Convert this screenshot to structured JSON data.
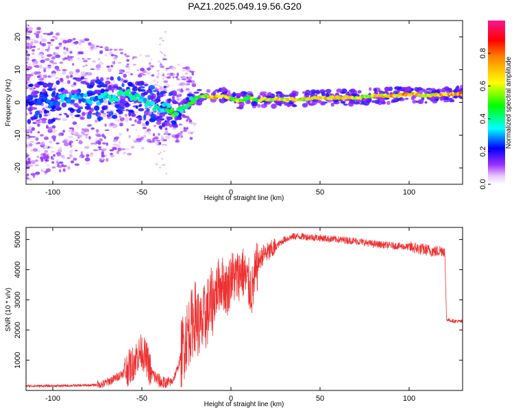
{
  "title": "PAZ1.2025.049.19.56.G20",
  "chart_data": [
    {
      "type": "heatmap",
      "xlabel": "Height of straight line (km)",
      "ylabel": "Frequency (Hz)",
      "xlim": [
        -115,
        130
      ],
      "ylim": [
        -25,
        25
      ],
      "xticks": [
        -100,
        -50,
        0,
        50,
        100
      ],
      "xtick_labels": [
        "-100",
        "-50",
        "0",
        "50",
        "100"
      ],
      "yticks": [
        -20,
        -10,
        0,
        10,
        20
      ],
      "ytick_labels": [
        "-20",
        "-10",
        "0",
        "10",
        "20"
      ],
      "grid": false,
      "colorbar": {
        "label": "Normalized spectral amplitude",
        "range": [
          0,
          1
        ],
        "ticks": [
          0,
          0.2,
          0.4,
          0.6,
          0.8
        ],
        "tick_labels": [
          "0.0",
          "0.2",
          "0.4",
          "0.6",
          "0.8"
        ],
        "colors": [
          "#ffffff",
          "#9b30ff",
          "#0000ff",
          "#00ffff",
          "#00ff00",
          "#ffff00",
          "#ff0000",
          "#ff1493"
        ]
      },
      "ridge": {
        "x": [
          -112,
          -105,
          -100,
          -95,
          -90,
          -85,
          -80,
          -75,
          -70,
          -65,
          -60,
          -55,
          -50,
          -45,
          -40,
          -37,
          -33,
          -30,
          -27,
          -24,
          -20,
          -15,
          -10,
          -5,
          0,
          5,
          10,
          15,
          20,
          30,
          40,
          50,
          60,
          70,
          80,
          90,
          100,
          110,
          120,
          130
        ],
        "y": [
          0,
          0.5,
          -1,
          1.5,
          1,
          2,
          1,
          0.5,
          2,
          1,
          3,
          2,
          0.5,
          -1,
          -2,
          -1,
          -3,
          -3,
          -2,
          0,
          1.5,
          2,
          1.5,
          2,
          1,
          0.5,
          1.5,
          0.5,
          1,
          1,
          1,
          1.5,
          1.5,
          1.5,
          2,
          2,
          2.5,
          2,
          2.5,
          2.5
        ],
        "amplitude": [
          0.25,
          0.3,
          0.3,
          0.35,
          0.35,
          0.35,
          0.35,
          0.35,
          0.4,
          0.4,
          0.45,
          0.45,
          0.4,
          0.45,
          0.45,
          0.45,
          0.55,
          0.55,
          0.5,
          0.5,
          0.55,
          0.6,
          0.8,
          0.75,
          0.7,
          0.65,
          0.6,
          0.65,
          0.75,
          0.7,
          0.72,
          0.75,
          0.8,
          0.7,
          0.72,
          0.8,
          0.85,
          0.7,
          0.82,
          0.85
        ]
      }
    },
    {
      "type": "line",
      "xlabel": "Height of straight line (km)",
      "ylabel": "SNR (10 * v/v)",
      "xlim": [
        -115,
        130
      ],
      "ylim": [
        0,
        5400
      ],
      "xticks": [
        -100,
        -50,
        0,
        50,
        100
      ],
      "xtick_labels": [
        "-100",
        "-50",
        "0",
        "50",
        "100"
      ],
      "yticks": [
        1000,
        2000,
        3000,
        4000,
        5000
      ],
      "ytick_labels": [
        "1000",
        "2000",
        "3000",
        "4000",
        "5000"
      ],
      "grid": false,
      "color": "#ee3030",
      "x": [
        -115,
        -100,
        -80,
        -72,
        -65,
        -60,
        -55,
        -52,
        -50,
        -47,
        -45,
        -42,
        -40,
        -37,
        -33,
        -30,
        -27,
        -25,
        -22,
        -20,
        -17,
        -14,
        -10,
        -7,
        -5,
        -2,
        0,
        3,
        6,
        9,
        12,
        15,
        18,
        22,
        26,
        30,
        35,
        40,
        50,
        60,
        70,
        80,
        90,
        100,
        105,
        110,
        115,
        119,
        120,
        121,
        125,
        130
      ],
      "y": [
        150,
        150,
        170,
        200,
        400,
        600,
        900,
        1200,
        1300,
        1000,
        600,
        400,
        300,
        200,
        300,
        700,
        1400,
        1800,
        2200,
        2500,
        2000,
        2500,
        3000,
        3500,
        3600,
        3300,
        3800,
        3700,
        4000,
        3600,
        3300,
        4200,
        4500,
        4600,
        4800,
        5000,
        5100,
        5100,
        5050,
        5000,
        4950,
        4850,
        4800,
        4750,
        4700,
        4650,
        4600,
        4650,
        4600,
        2350,
        2300,
        2280
      ]
    }
  ]
}
